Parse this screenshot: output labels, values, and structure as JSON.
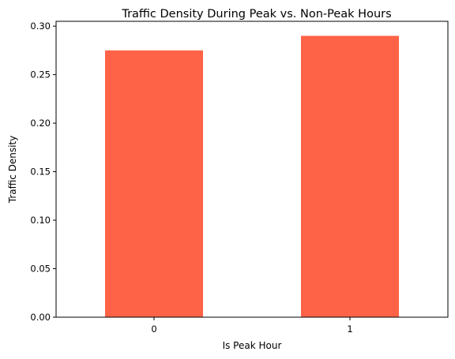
{
  "chart_data": {
    "type": "bar",
    "title": "Traffic Density During Peak vs. Non-Peak Hours",
    "xlabel": "Is Peak Hour",
    "ylabel": "Traffic Density",
    "categories": [
      "0",
      "1"
    ],
    "values": [
      0.275,
      0.29
    ],
    "ylim": [
      0,
      0.305
    ],
    "yticks": [
      "0.00",
      "0.05",
      "0.10",
      "0.15",
      "0.20",
      "0.25",
      "0.30"
    ],
    "bar_color": "#ff6347",
    "grid": false,
    "legend": "none"
  }
}
